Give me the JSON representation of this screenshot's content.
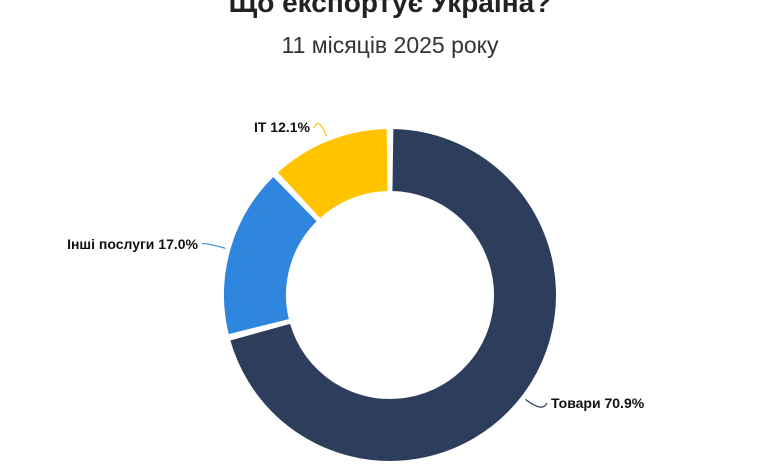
{
  "header": {
    "title": "Що експортує Україна?",
    "subtitle": "11 місяців 2025 року"
  },
  "chart_data": {
    "type": "pie",
    "title": "Що експортує Україна?",
    "subtitle": "11 місяців 2025 року",
    "unit": "%",
    "slices": [
      {
        "name": "Товари",
        "value": 70.9,
        "label": "Товари 70.9%",
        "color": "#2D3E5C"
      },
      {
        "name": "Інші послуги",
        "value": 17.0,
        "label": "Інші послуги 17.0%",
        "color": "#2E86DE"
      },
      {
        "name": "IT",
        "value": 12.1,
        "label": "IT 12.1%",
        "color": "#FFC300"
      }
    ],
    "legend": "none"
  }
}
